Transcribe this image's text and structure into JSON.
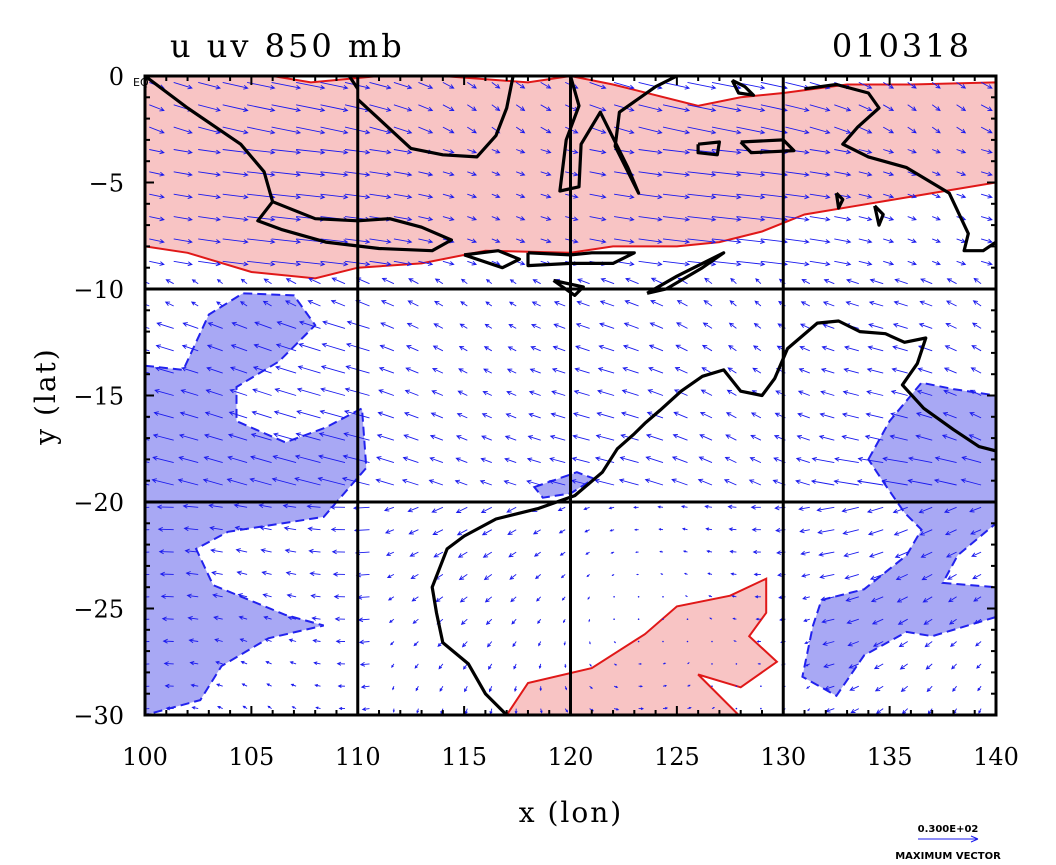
{
  "title": "u uv 850 mb",
  "date": "010318",
  "eq_label": "EQ",
  "xlabel": "x (lon)",
  "ylabel": "y (lat)",
  "legend": {
    "magnitude": "0.300E+02",
    "caption": "MAXIMUM VECTOR"
  },
  "colors": {
    "positive_fill": "#f8c4c4",
    "positive_contour": "#e01818",
    "negative_fill": "#a8a8f4",
    "negative_contour": "#2222ee",
    "coastline": "#000000",
    "vector": "#1a1aee"
  },
  "chart_data": {
    "type": "map",
    "xlim": [
      100,
      140
    ],
    "ylim": [
      -30,
      0
    ],
    "x_ticks": [
      100,
      105,
      110,
      115,
      120,
      125,
      130,
      135,
      140
    ],
    "y_ticks": [
      0,
      -5,
      -10,
      -15,
      -20,
      -25,
      -30
    ],
    "x_tick_labels": [
      "100",
      "105",
      "110",
      "115",
      "120",
      "125",
      "130",
      "135",
      "140"
    ],
    "y_tick_labels": [
      "0",
      "−5",
      "−10",
      "−15",
      "−20",
      "−25",
      "−30"
    ],
    "grid_lon": [
      110,
      120,
      130
    ],
    "grid_lat": [
      -10,
      -20
    ],
    "positive_regions": [
      {
        "name": "northern-westerly-band",
        "points": [
          [
            100,
            0
          ],
          [
            106,
            0
          ],
          [
            107.8,
            -0.3
          ],
          [
            111,
            0
          ],
          [
            114,
            0
          ],
          [
            118,
            -0.3
          ],
          [
            120,
            0
          ],
          [
            122,
            -0.4
          ],
          [
            126,
            -1.4
          ],
          [
            128,
            -1
          ],
          [
            130,
            -0.8
          ],
          [
            133,
            -0.4
          ],
          [
            136,
            -0.4
          ],
          [
            140,
            -0.3
          ],
          [
            140,
            -5
          ],
          [
            137,
            -5.5
          ],
          [
            134,
            -6
          ],
          [
            131,
            -6.5
          ],
          [
            129,
            -7.3
          ],
          [
            127,
            -7.8
          ],
          [
            125,
            -8
          ],
          [
            122,
            -8
          ],
          [
            120,
            -8.3
          ],
          [
            116,
            -8.2
          ],
          [
            113,
            -8.8
          ],
          [
            110,
            -9
          ],
          [
            108,
            -9.5
          ],
          [
            105,
            -9.2
          ],
          [
            102,
            -8.3
          ],
          [
            100,
            -8
          ]
        ]
      },
      {
        "name": "southern-band",
        "points": [
          [
            117,
            -30
          ],
          [
            118,
            -28.5
          ],
          [
            121,
            -27.8
          ],
          [
            123.5,
            -26.2
          ],
          [
            125,
            -24.9
          ],
          [
            127.5,
            -24.4
          ],
          [
            129.2,
            -23.6
          ],
          [
            129.2,
            -25.2
          ],
          [
            128.4,
            -26.3
          ],
          [
            129.7,
            -27.5
          ],
          [
            128,
            -28.7
          ],
          [
            126,
            -28.1
          ],
          [
            127.9,
            -30
          ],
          [
            124,
            -30
          ]
        ]
      }
    ],
    "negative_regions": [
      {
        "name": "western-easterly-core",
        "points": [
          [
            100,
            -13.6
          ],
          [
            101.8,
            -13.8
          ],
          [
            103,
            -11.2
          ],
          [
            104.6,
            -10.2
          ],
          [
            107,
            -10.3
          ],
          [
            108,
            -11.7
          ],
          [
            106.3,
            -13.4
          ],
          [
            104.3,
            -14.6
          ],
          [
            104.3,
            -16.2
          ],
          [
            106.6,
            -17.2
          ],
          [
            108.5,
            -16.5
          ],
          [
            110.2,
            -15.6
          ],
          [
            110.4,
            -18.4
          ],
          [
            108.4,
            -20.7
          ],
          [
            103.9,
            -21.4
          ],
          [
            102.4,
            -22.2
          ],
          [
            103.2,
            -23.9
          ],
          [
            106.6,
            -25.3
          ],
          [
            108.4,
            -25.8
          ],
          [
            105.8,
            -26.4
          ],
          [
            103.6,
            -27.7
          ],
          [
            102.6,
            -29.3
          ],
          [
            100,
            -30
          ]
        ]
      },
      {
        "name": "australia-nw-patch",
        "points": [
          [
            118.3,
            -19.3
          ],
          [
            120.3,
            -18.6
          ],
          [
            121.1,
            -18.9
          ],
          [
            120,
            -19.6
          ],
          [
            118.7,
            -19.8
          ]
        ]
      },
      {
        "name": "eastern-easterly-core",
        "points": [
          [
            134,
            -18
          ],
          [
            135,
            -16.2
          ],
          [
            136.5,
            -14.4
          ],
          [
            138,
            -14.7
          ],
          [
            140,
            -15
          ],
          [
            140,
            -21
          ],
          [
            138.2,
            -22.5
          ],
          [
            137.5,
            -23.8
          ],
          [
            140,
            -24
          ],
          [
            140,
            -25.4
          ],
          [
            137,
            -26.3
          ],
          [
            135.8,
            -26.1
          ],
          [
            133.8,
            -27.2
          ],
          [
            132.5,
            -29.1
          ],
          [
            130.9,
            -28.2
          ],
          [
            131.4,
            -25.8
          ],
          [
            131.8,
            -24.6
          ],
          [
            133.8,
            -24.1
          ],
          [
            135.8,
            -22.5
          ],
          [
            136.5,
            -21.3
          ],
          [
            135.7,
            -20.5
          ],
          [
            134.8,
            -19.2
          ]
        ]
      }
    ],
    "coastlines": [
      {
        "name": "sumatra",
        "points": [
          [
            100,
            0
          ],
          [
            102,
            -1.5
          ],
          [
            104.5,
            -3.2
          ],
          [
            105.6,
            -4.5
          ],
          [
            106,
            -5.9
          ]
        ]
      },
      {
        "name": "borneo-west",
        "points": [
          [
            110,
            -0.6
          ],
          [
            109.6,
            0
          ]
        ]
      },
      {
        "name": "borneo-south",
        "points": [
          [
            110,
            -1.1
          ],
          [
            112.5,
            -3.4
          ],
          [
            114,
            -3.7
          ],
          [
            115.6,
            -3.8
          ],
          [
            116.5,
            -2.8
          ],
          [
            117,
            -1.5
          ],
          [
            117.3,
            0
          ]
        ]
      },
      {
        "name": "java",
        "points": [
          [
            106,
            -5.9
          ],
          [
            108,
            -6.7
          ],
          [
            110,
            -6.8
          ],
          [
            111.5,
            -6.7
          ],
          [
            113,
            -7.1
          ],
          [
            114.4,
            -7.7
          ],
          [
            113.5,
            -8.2
          ],
          [
            111,
            -8.1
          ],
          [
            108.5,
            -7.8
          ],
          [
            106.4,
            -7.2
          ],
          [
            105.3,
            -6.8
          ],
          [
            106,
            -5.9
          ]
        ]
      },
      {
        "name": "bali-lombok",
        "points": [
          [
            115,
            -8.4
          ],
          [
            116.6,
            -8.2
          ],
          [
            117.6,
            -8.6
          ],
          [
            116.8,
            -9
          ],
          [
            115,
            -8.4
          ]
        ]
      },
      {
        "name": "sumbawa-flores",
        "points": [
          [
            118,
            -8.3
          ],
          [
            120,
            -8.4
          ],
          [
            121,
            -8.3
          ],
          [
            123,
            -8.3
          ],
          [
            122,
            -8.8
          ],
          [
            120,
            -8.8
          ],
          [
            118,
            -8.9
          ],
          [
            118,
            -8.3
          ]
        ]
      },
      {
        "name": "sumba",
        "points": [
          [
            119.2,
            -9.6
          ],
          [
            120.6,
            -9.9
          ],
          [
            120.2,
            -10.3
          ],
          [
            119.2,
            -9.6
          ]
        ]
      },
      {
        "name": "timor",
        "points": [
          [
            123.6,
            -10.2
          ],
          [
            125,
            -9.4
          ],
          [
            127.2,
            -8.3
          ],
          [
            126.2,
            -9
          ],
          [
            124.5,
            -10
          ],
          [
            123.6,
            -10.2
          ]
        ]
      },
      {
        "name": "sulawesi",
        "points": [
          [
            120,
            0
          ],
          [
            120.4,
            -1.4
          ],
          [
            119.8,
            -3
          ],
          [
            119.5,
            -5.4
          ],
          [
            120.4,
            -5.2
          ],
          [
            120.5,
            -3.2
          ],
          [
            121.4,
            -1.7
          ],
          [
            122.7,
            -4.3
          ],
          [
            123.2,
            -5.5
          ],
          [
            122.1,
            -3.3
          ],
          [
            122.3,
            -1.7
          ],
          [
            124,
            -0.5
          ],
          [
            125,
            0
          ]
        ]
      },
      {
        "name": "buru",
        "points": [
          [
            126,
            -3.2
          ],
          [
            127,
            -3.1
          ],
          [
            126.9,
            -3.7
          ],
          [
            126,
            -3.6
          ],
          [
            126,
            -3.2
          ]
        ]
      },
      {
        "name": "seram",
        "points": [
          [
            128,
            -3.1
          ],
          [
            130,
            -3
          ],
          [
            130.5,
            -3.5
          ],
          [
            128.5,
            -3.6
          ],
          [
            128,
            -3.1
          ]
        ]
      },
      {
        "name": "halmahera",
        "points": [
          [
            127.6,
            -0.2
          ],
          [
            128.2,
            -0.5
          ],
          [
            128.6,
            -0.9
          ],
          [
            127.9,
            -0.8
          ],
          [
            127.6,
            -0.2
          ]
        ]
      },
      {
        "name": "new-guinea-west",
        "points": [
          [
            131,
            -0.6
          ],
          [
            132.5,
            -0.4
          ],
          [
            134,
            -0.8
          ],
          [
            134.5,
            -1.5
          ],
          [
            133.5,
            -2.4
          ],
          [
            132.8,
            -3.2
          ],
          [
            134,
            -3.8
          ],
          [
            135.8,
            -4.3
          ],
          [
            137.8,
            -5.5
          ],
          [
            138.7,
            -7.4
          ],
          [
            138.5,
            -8.2
          ],
          [
            139.4,
            -8.2
          ],
          [
            140,
            -7.8
          ]
        ]
      },
      {
        "name": "kai-island",
        "points": [
          [
            132.5,
            -5.5
          ],
          [
            132.8,
            -5.8
          ],
          [
            132.6,
            -6.2
          ],
          [
            132.5,
            -5.5
          ]
        ]
      },
      {
        "name": "aru-island",
        "points": [
          [
            134.3,
            -6.1
          ],
          [
            134.7,
            -6.5
          ],
          [
            134.5,
            -7
          ],
          [
            134.3,
            -6.1
          ]
        ]
      },
      {
        "name": "australia",
        "points": [
          [
            117,
            -30
          ],
          [
            116,
            -29
          ],
          [
            115.2,
            -27.6
          ],
          [
            114,
            -26.6
          ],
          [
            113.7,
            -25.2
          ],
          [
            113.5,
            -24
          ],
          [
            114.2,
            -22.2
          ],
          [
            115,
            -21.6
          ],
          [
            116.5,
            -20.8
          ],
          [
            118.5,
            -20.3
          ],
          [
            120.2,
            -19.7
          ],
          [
            121.5,
            -18.6
          ],
          [
            122.2,
            -17.5
          ],
          [
            123,
            -16.8
          ],
          [
            123.5,
            -16.3
          ],
          [
            124.2,
            -15.7
          ],
          [
            125.2,
            -14.8
          ],
          [
            126.2,
            -14.1
          ],
          [
            127.2,
            -13.8
          ],
          [
            128,
            -14.8
          ],
          [
            129,
            -15
          ],
          [
            129.6,
            -14.2
          ],
          [
            130.2,
            -12.8
          ],
          [
            130.9,
            -12.2
          ],
          [
            131.6,
            -11.6
          ],
          [
            132.6,
            -11.5
          ],
          [
            133.6,
            -12
          ],
          [
            134.8,
            -12.1
          ],
          [
            135.7,
            -12.5
          ],
          [
            136.7,
            -12.3
          ],
          [
            136.3,
            -13.5
          ],
          [
            135.6,
            -14.5
          ],
          [
            136.6,
            -15.6
          ],
          [
            138,
            -16.6
          ],
          [
            139.2,
            -17.4
          ],
          [
            140,
            -17.6
          ]
        ]
      }
    ],
    "vector_scale_ms": 30
  }
}
